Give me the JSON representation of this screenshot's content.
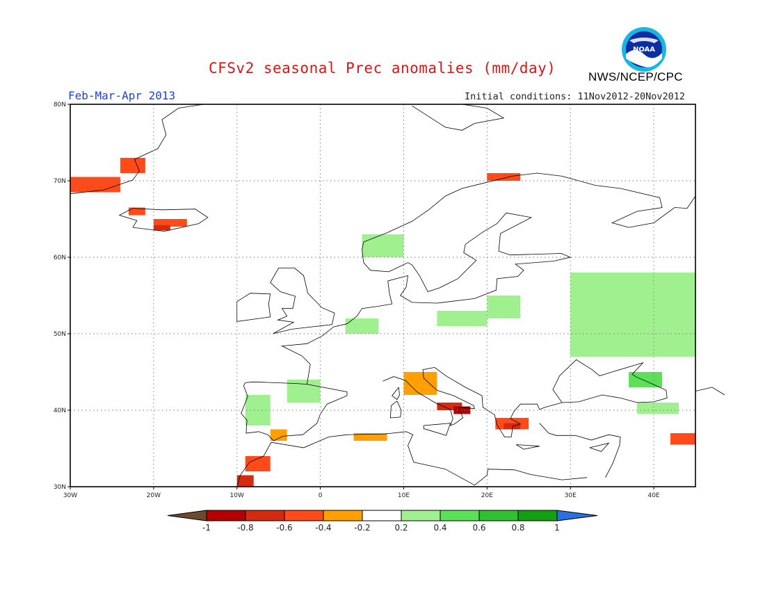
{
  "title": "CFSv2 seasonal Prec anomalies (mm/day)",
  "season": "Feb-Mar-Apr 2013",
  "initial_conditions": "Initial conditions: 11Nov2012-20Nov2012",
  "organization": "NWS/NCEP/CPC",
  "logo_text": "NOAA",
  "map": {
    "projection": "lat-lon",
    "lon_range": [
      -30,
      45
    ],
    "lat_range": [
      30,
      80
    ],
    "grid": true,
    "lon_ticks": [
      {
        "value": -30,
        "label": "30W"
      },
      {
        "value": -20,
        "label": "20W"
      },
      {
        "value": -10,
        "label": "10W"
      },
      {
        "value": 0,
        "label": "0"
      },
      {
        "value": 10,
        "label": "10E"
      },
      {
        "value": 20,
        "label": "20E"
      },
      {
        "value": 30,
        "label": "30E"
      },
      {
        "value": 40,
        "label": "40E"
      }
    ],
    "lat_ticks": [
      {
        "value": 30,
        "label": "30N"
      },
      {
        "value": 40,
        "label": "40N"
      },
      {
        "value": 50,
        "label": "50N"
      },
      {
        "value": 60,
        "label": "60N"
      },
      {
        "value": 70,
        "label": "70N"
      },
      {
        "value": 80,
        "label": "80N"
      }
    ]
  },
  "colorbar": {
    "levels": [
      "-1",
      "-0.8",
      "-0.6",
      "-0.4",
      "-0.2",
      "0.2",
      "0.4",
      "0.6",
      "0.8",
      "1"
    ],
    "colors": {
      "below_min": "#6b4a30",
      "b1": "#b30000",
      "b2": "#d42a10",
      "b3": "#ff4a1a",
      "b4": "#ff9f00",
      "neutral": "#ffffff",
      "g1": "#a0f090",
      "g2": "#5ce05a",
      "g3": "#30c030",
      "g4": "#12a012",
      "above_max": "#2a70e0"
    }
  },
  "chart_data": {
    "type": "heatmap",
    "title": "CFSv2 seasonal Prec anomalies (mm/day)",
    "units": "mm/day",
    "anomaly_regions": [
      {
        "lon": [
          -30,
          -24
        ],
        "lat": [
          68.5,
          70.5
        ],
        "value": -0.5
      },
      {
        "lon": [
          -24,
          -21
        ],
        "lat": [
          71,
          73
        ],
        "value": -0.4
      },
      {
        "lon": [
          -23,
          -21
        ],
        "lat": [
          65.5,
          66.5
        ],
        "value": -0.4
      },
      {
        "lon": [
          -20,
          -16
        ],
        "lat": [
          64,
          65
        ],
        "value": -0.5
      },
      {
        "lon": [
          -20,
          -18
        ],
        "lat": [
          63.5,
          64.2
        ],
        "value": -0.7
      },
      {
        "lon": [
          -10,
          -8
        ],
        "lat": [
          30,
          31.5
        ],
        "value": -0.6
      },
      {
        "lon": [
          -9,
          -6
        ],
        "lat": [
          32,
          34
        ],
        "value": -0.4
      },
      {
        "lon": [
          -6,
          -4
        ],
        "lat": [
          36,
          37.5
        ],
        "value": -0.3
      },
      {
        "lon": [
          4,
          8
        ],
        "lat": [
          36,
          37
        ],
        "value": -0.3
      },
      {
        "lon": [
          10,
          14
        ],
        "lat": [
          42,
          45
        ],
        "value": -0.3
      },
      {
        "lon": [
          14,
          17
        ],
        "lat": [
          40,
          41
        ],
        "value": -0.6
      },
      {
        "lon": [
          16,
          18
        ],
        "lat": [
          39.5,
          40.5
        ],
        "value": -0.9
      },
      {
        "lon": [
          21,
          25
        ],
        "lat": [
          37.5,
          39
        ],
        "value": -0.4
      },
      {
        "lon": [
          22,
          24
        ],
        "lat": [
          37.5,
          38.3
        ],
        "value": -0.7
      },
      {
        "lon": [
          42,
          45
        ],
        "lat": [
          35.5,
          37
        ],
        "value": -0.4
      },
      {
        "lon": [
          20,
          24
        ],
        "lat": [
          70,
          71
        ],
        "value": -0.4
      },
      {
        "lon": [
          -4,
          0
        ],
        "lat": [
          41,
          44
        ],
        "value": 0.3
      },
      {
        "lon": [
          -9,
          -6
        ],
        "lat": [
          38,
          42
        ],
        "value": 0.3
      },
      {
        "lon": [
          3,
          7
        ],
        "lat": [
          50,
          52
        ],
        "value": 0.3
      },
      {
        "lon": [
          5,
          10
        ],
        "lat": [
          60,
          63
        ],
        "value": 0.3
      },
      {
        "lon": [
          14,
          20
        ],
        "lat": [
          51,
          53
        ],
        "value": 0.3
      },
      {
        "lon": [
          20,
          24
        ],
        "lat": [
          52,
          55
        ],
        "value": 0.3
      },
      {
        "lon": [
          30,
          45
        ],
        "lat": [
          47,
          58
        ],
        "value": 0.3
      },
      {
        "lon": [
          37,
          41
        ],
        "lat": [
          43,
          45
        ],
        "value": 0.5
      },
      {
        "lon": [
          38,
          43
        ],
        "lat": [
          39.5,
          41
        ],
        "value": 0.3
      }
    ]
  }
}
